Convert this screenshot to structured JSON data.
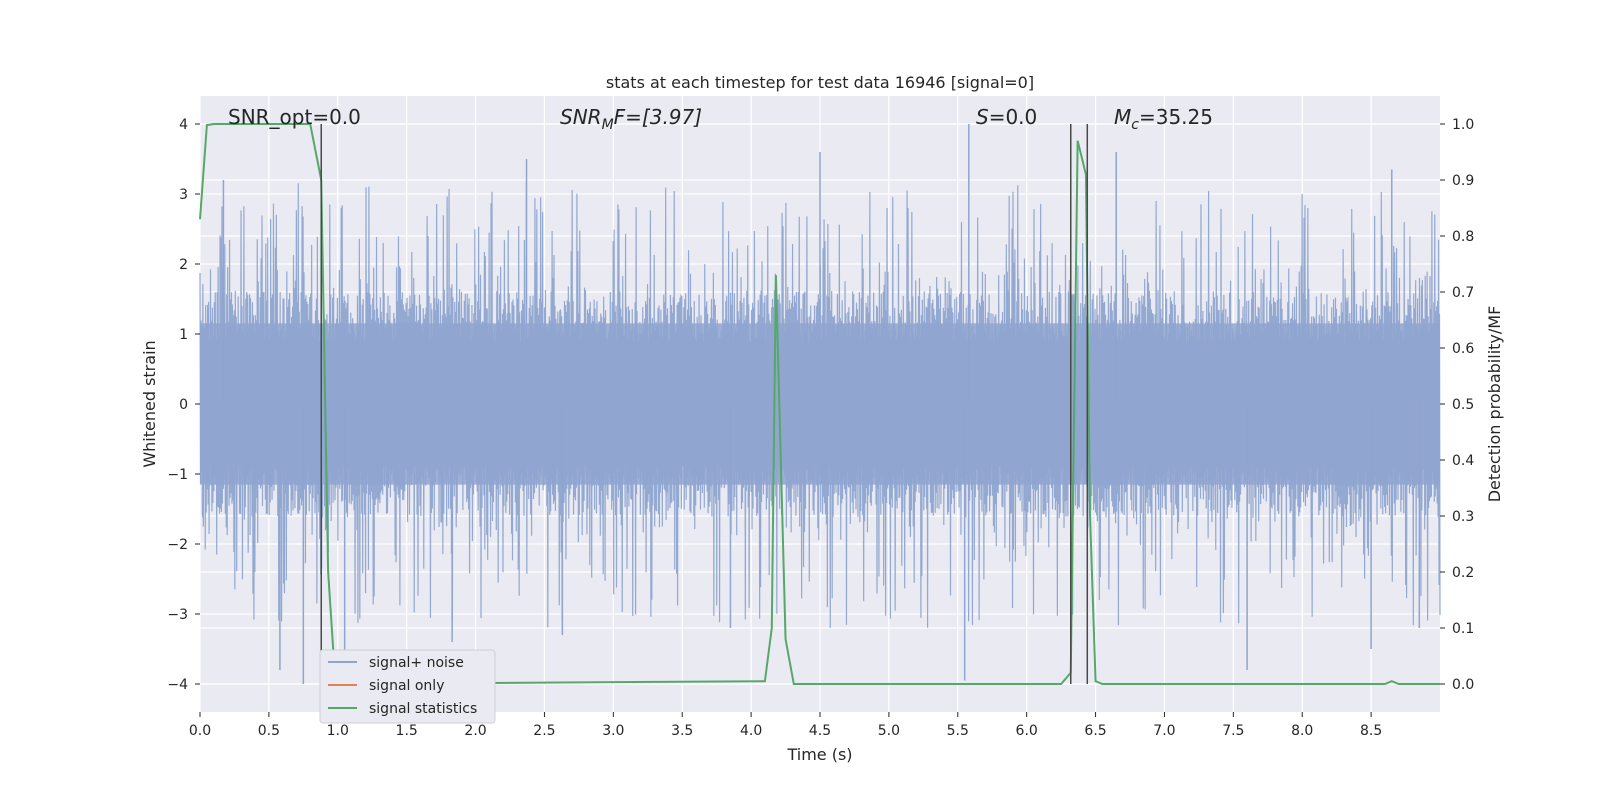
{
  "chart_data": {
    "type": "line",
    "title": "stats at each timestep for test data 16946 [signal=0]",
    "xlabel": "Time (s)",
    "ylabel_left": "Whitened strain",
    "ylabel_right": "Detection probability/MF",
    "xlim": [
      0.0,
      9.0
    ],
    "ylim_left": [
      -4.4,
      4.4
    ],
    "ylim_right": [
      -0.05,
      1.05
    ],
    "x_ticks": [
      "0.0",
      "0.5",
      "1.0",
      "1.5",
      "2.0",
      "2.5",
      "3.0",
      "3.5",
      "4.0",
      "4.5",
      "5.0",
      "5.5",
      "6.0",
      "6.5",
      "7.0",
      "7.5",
      "8.0",
      "8.5"
    ],
    "y_left_ticks": [
      "4",
      "3",
      "2",
      "1",
      "0",
      "−1",
      "−2",
      "−3",
      "−4"
    ],
    "y_right_ticks": [
      "1.0",
      "0.9",
      "0.8",
      "0.7",
      "0.6",
      "0.5",
      "0.4",
      "0.3",
      "0.2",
      "0.1",
      "0.0"
    ],
    "grid": true,
    "legend_position": "lower-left",
    "colors": {
      "noise": "#8fa5cf",
      "signal_only": "#dd8452",
      "statistics": "#55a868",
      "marker": "#4a4a4a",
      "plot_bg": "#eaeaf2",
      "grid": "#ffffff"
    },
    "annotations": {
      "snr_opt": "SNR_opt=0.0",
      "snr_mf_prefix": "SNR",
      "snr_mf_sub": "M",
      "snr_mf_rest": "F=[3.97]",
      "s_italic": "S",
      "s_rest": "=0.0",
      "mc_italic": "M",
      "mc_sub": "c",
      "mc_rest": "=35.25"
    },
    "markers_x": [
      0.88,
      6.32,
      6.44
    ],
    "series": [
      {
        "name": "signal+ noise",
        "kind": "strain",
        "envelope_core": 1.6,
        "envelope_peak": 4.0,
        "notable_spikes": [
          {
            "x": 0.17,
            "y": 3.2
          },
          {
            "x": 0.58,
            "y": -3.8
          },
          {
            "x": 0.75,
            "y": -4.0
          },
          {
            "x": 1.05,
            "y": -3.9
          },
          {
            "x": 1.83,
            "y": -3.4
          },
          {
            "x": 2.37,
            "y": 3.5
          },
          {
            "x": 2.63,
            "y": -3.3
          },
          {
            "x": 3.85,
            "y": -3.2
          },
          {
            "x": 4.5,
            "y": 3.6
          },
          {
            "x": 5.58,
            "y": 4.0
          },
          {
            "x": 5.55,
            "y": -3.95
          },
          {
            "x": 6.65,
            "y": 3.6
          },
          {
            "x": 7.6,
            "y": -3.8
          },
          {
            "x": 8.5,
            "y": -3.5
          },
          {
            "x": 8.65,
            "y": 3.35
          },
          {
            "x": 8.85,
            "y": -3.2
          }
        ]
      },
      {
        "name": "signal only",
        "kind": "flat",
        "values_note": "zero"
      },
      {
        "name": "signal statistics",
        "kind": "probability",
        "x": [
          0.0,
          0.05,
          0.1,
          0.15,
          0.8,
          0.88,
          0.93,
          0.97,
          1.0,
          4.1,
          4.15,
          4.18,
          4.25,
          4.31,
          6.25,
          6.32,
          6.37,
          6.43,
          6.46,
          6.5,
          6.55,
          6.9,
          7.7,
          8.6,
          8.65,
          8.7,
          9.0
        ],
        "values": [
          0.83,
          0.998,
          1.0,
          1.0,
          1.0,
          0.9,
          0.2,
          0.05,
          0.0,
          0.005,
          0.1,
          0.73,
          0.08,
          0.0,
          0.0,
          0.02,
          0.97,
          0.91,
          0.3,
          0.005,
          0.0,
          0.0,
          0.0,
          0.0,
          0.005,
          0.0,
          0.0
        ]
      }
    ]
  }
}
